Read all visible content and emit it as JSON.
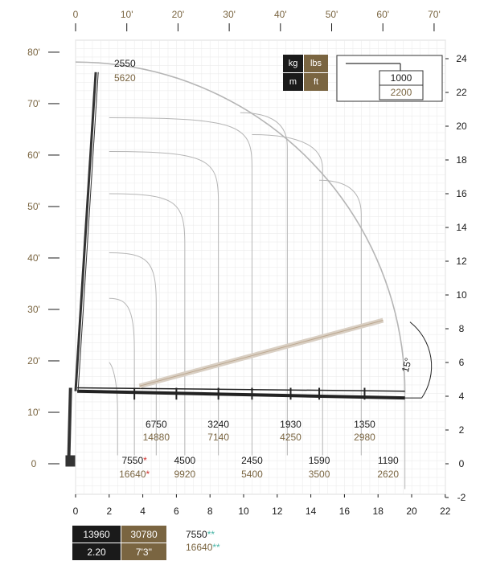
{
  "chart_data": {
    "type": "line",
    "title": "",
    "units": {
      "metric_weight": "kg",
      "imperial_weight": "lbs",
      "metric_length": "m",
      "imperial_length": "ft"
    },
    "x_axis_m": {
      "ticks": [
        0,
        2,
        4,
        6,
        8,
        10,
        12,
        14,
        16,
        18,
        20,
        22
      ],
      "range": [
        0,
        22
      ]
    },
    "y_axis_m": {
      "ticks": [
        -2,
        0,
        2,
        4,
        6,
        8,
        10,
        12,
        14,
        16,
        18,
        20,
        22,
        24
      ],
      "range": [
        -2.5,
        24.5
      ]
    },
    "x_axis_ft": {
      "ticks": [
        "0",
        "10'",
        "20'",
        "30'",
        "40'",
        "50'",
        "60'",
        "70'"
      ]
    },
    "y_axis_ft": {
      "ticks": [
        "0",
        "10'",
        "20'",
        "30'",
        "40'",
        "50'",
        "60'",
        "70'",
        "80'"
      ]
    },
    "legend_example": {
      "kg": "1000",
      "lbs": "2200"
    },
    "angle_label": "15°",
    "tip_load": {
      "kg": "2550",
      "lbs": "5620",
      "x": 1.2,
      "y": 23.2
    },
    "upper_loads": [
      {
        "kg": "6750",
        "lbs": "14880",
        "x": 4.8
      },
      {
        "kg": "3240",
        "lbs": "7140",
        "x": 8.5
      },
      {
        "kg": "1930",
        "lbs": "4250",
        "x": 12.8
      },
      {
        "kg": "1350",
        "lbs": "2980",
        "x": 17.2
      }
    ],
    "lower_loads": [
      {
        "kg": "7550",
        "lbs": "16640",
        "mark": "*",
        "x": 3.5
      },
      {
        "kg": "4500",
        "lbs": "9920",
        "mark": "",
        "x": 6.5
      },
      {
        "kg": "2450",
        "lbs": "5400",
        "mark": "",
        "x": 10.5
      },
      {
        "kg": "1590",
        "lbs": "3500",
        "mark": "",
        "x": 14.5
      },
      {
        "kg": "1190",
        "lbs": "2620",
        "mark": "",
        "x": 18.6
      }
    ],
    "footer_box": {
      "kg": "13960",
      "lbs": "30780",
      "m": "2.20",
      "ft": "7'3''"
    },
    "footer_note": {
      "kg": "7550",
      "lbs": "16640",
      "mark": "**"
    },
    "envelope_curves": [
      {
        "reach": 10.5,
        "peak": 20.5
      },
      {
        "reach": 8.5,
        "peak": 18.5
      },
      {
        "reach": 6.5,
        "peak": 16.0
      },
      {
        "reach": 4.8,
        "peak": 12.5
      },
      {
        "reach": 3.5,
        "peak": 9.8
      },
      {
        "reach": 2.5,
        "peak": 6.0
      }
    ],
    "main_arc": {
      "center_x": 0,
      "center_y": 4.2,
      "radius": 19.6
    },
    "tall_curves": [
      {
        "reach": 14.7,
        "start_x": 10.5,
        "start_y": 19.5
      },
      {
        "reach": 12.6,
        "start_x": 9.8,
        "start_y": 20.8
      },
      {
        "reach": 17.0,
        "start_x": 14.5,
        "start_y": 16.8
      }
    ],
    "colors": {
      "metric": "#1a1a1a",
      "imperial": "#7a6541",
      "accent_red": "#d0312d",
      "accent_teal": "#49b5a6",
      "grid": "#cfcfcf",
      "curve": "#b5b5b5"
    }
  },
  "legend": {
    "kg_label": "kg",
    "lbs_label": "lbs",
    "m_label": "m",
    "ft_label": "ft"
  }
}
